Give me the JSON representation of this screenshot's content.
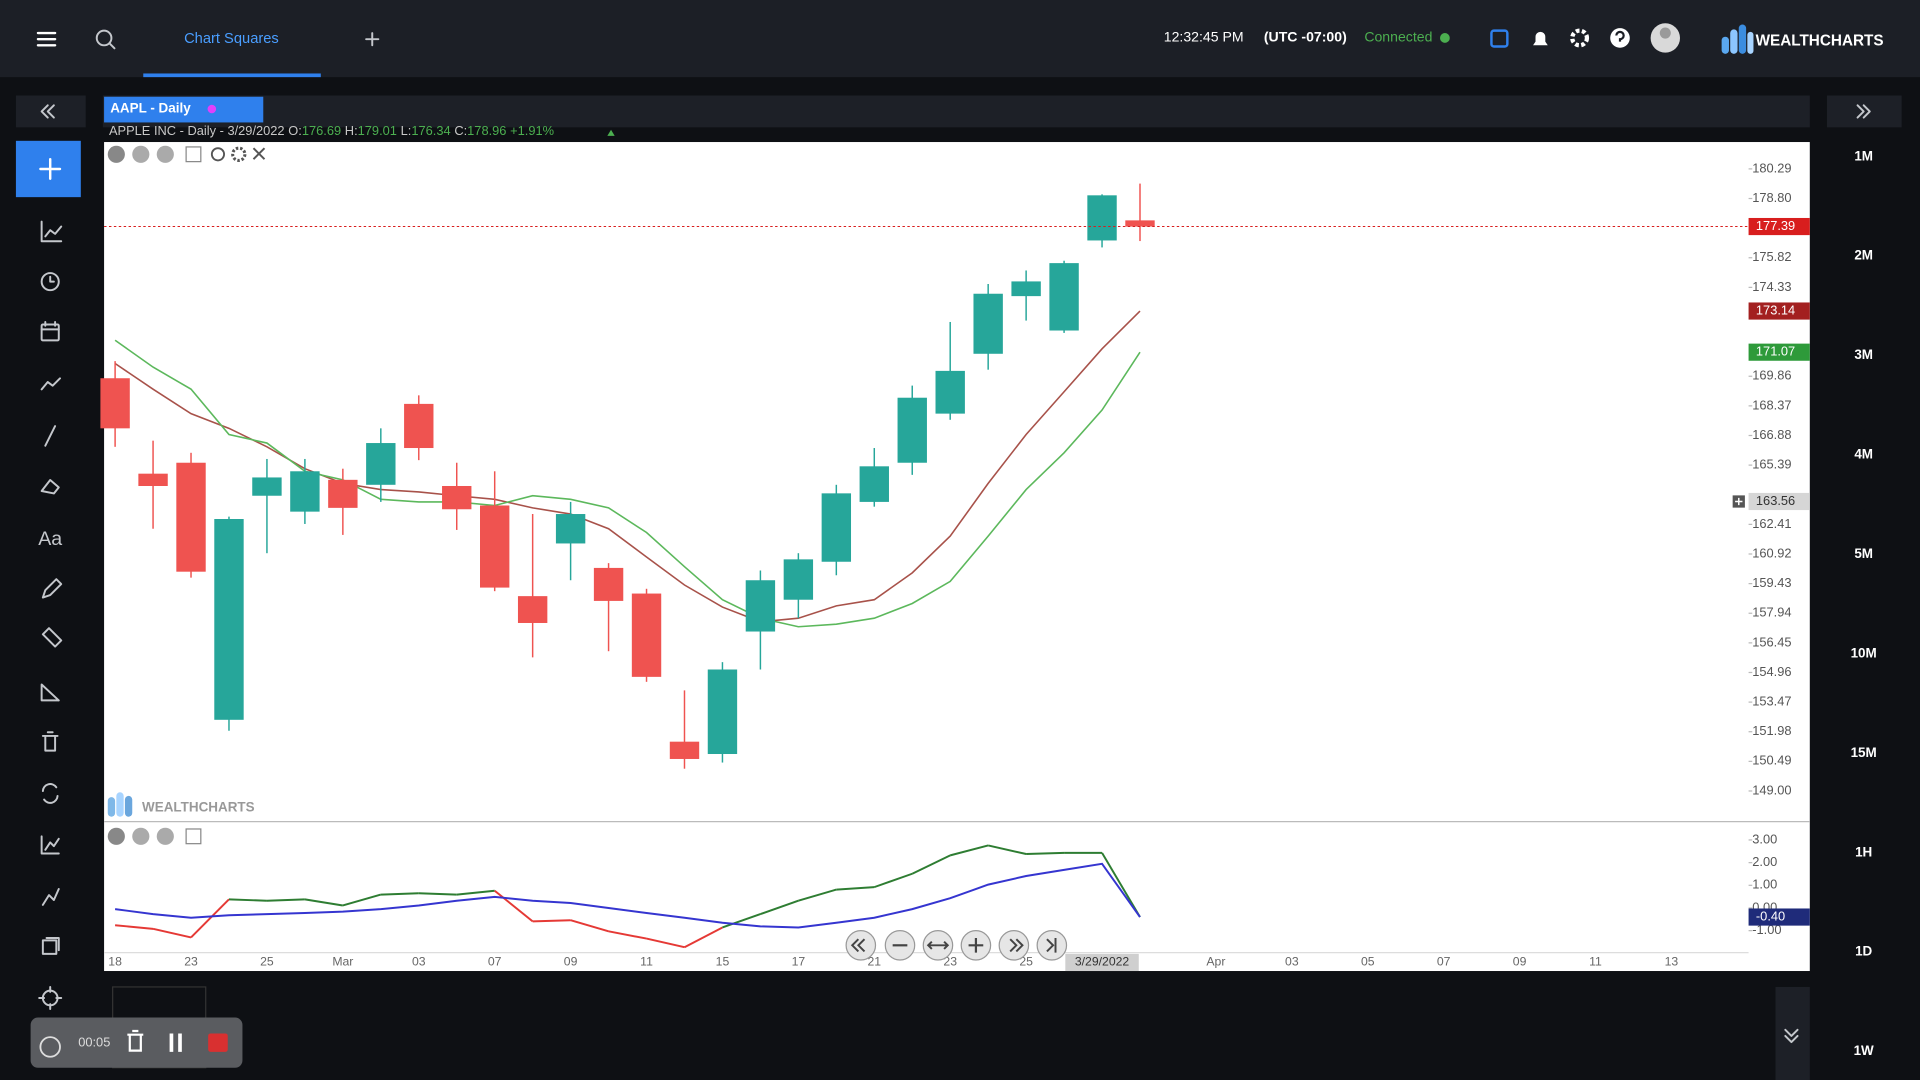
{
  "header": {
    "tab": "Chart Squares",
    "time": "12:32:45 PM",
    "timezone": "(UTC -07:00)",
    "status": "Connected",
    "brand": "WEALTHCHARTS"
  },
  "chart_tab": "AAPL - Daily",
  "legend": {
    "prefix": "APPLE INC - Daily - 3/29/2022",
    "items": [
      {
        "label": "O:",
        "value": 176.69
      },
      {
        "label": "H:",
        "value": 179.01
      },
      {
        "label": "L:",
        "value": 176.34
      },
      {
        "label": "C:",
        "value": 178.96
      }
    ],
    "change": "+1.91%"
  },
  "toolbar": {
    "text_tool": "Aa"
  },
  "timeframes": [
    "1M",
    "2M",
    "3M",
    "4M",
    "5M",
    "10M",
    "15M",
    "1H",
    "1D",
    "1W"
  ],
  "recorder": {
    "time": "00:05"
  },
  "chart_data": [
    {
      "type": "candlestick",
      "watermark": "WEALTHCHARTS",
      "categories": [
        "18",
        null,
        "23",
        null,
        "25",
        null,
        "Mar",
        null,
        "03",
        null,
        "07",
        null,
        "09",
        null,
        "11",
        null,
        "15",
        null,
        "17",
        null,
        "21",
        null,
        "23",
        null,
        "25",
        null,
        "3/29/2022",
        null,
        null,
        "Apr",
        null,
        "03",
        null,
        "05",
        null,
        "07",
        null,
        "09",
        null,
        "11",
        null,
        "13"
      ],
      "open": [
        169.76,
        164.96,
        165.51,
        152.58,
        163.85,
        163.05,
        164.65,
        164.4,
        168.47,
        164.34,
        163.36,
        158.8,
        161.45,
        160.22,
        158.93,
        151.48,
        150.86,
        157.02,
        158.62,
        160.53,
        163.54,
        165.51,
        167.98,
        170.99,
        173.89,
        172.16,
        176.69,
        177.7,
        null,
        null,
        null,
        null,
        null,
        null,
        null,
        null,
        null,
        null,
        null,
        null,
        null,
        null
      ],
      "high": [
        170.62,
        166.62,
        166.01,
        162.8,
        165.7,
        165.7,
        165.21,
        167.24,
        168.9,
        165.51,
        165.08,
        162.93,
        163.54,
        160.46,
        159.17,
        154.06,
        155.48,
        160.09,
        160.96,
        164.4,
        166.25,
        169.39,
        172.59,
        174.5,
        175.18,
        175.67,
        179.01,
        179.55,
        null,
        null,
        null,
        null,
        null,
        null,
        null,
        null,
        null,
        null,
        null,
        null,
        null,
        null
      ],
      "low": [
        166.31,
        162.19,
        159.73,
        152.03,
        160.96,
        162.43,
        161.88,
        163.54,
        165.64,
        162.13,
        159.05,
        155.72,
        159.6,
        156.03,
        154.49,
        150.12,
        150.43,
        155.11,
        157.69,
        159.85,
        163.3,
        164.9,
        167.67,
        170.19,
        172.66,
        172.04,
        176.34,
        176.66,
        null,
        null,
        null,
        null,
        null,
        null,
        null,
        null,
        null,
        null,
        null,
        null,
        null,
        null
      ],
      "close": [
        167.24,
        164.34,
        160.03,
        162.68,
        164.77,
        165.08,
        163.24,
        166.5,
        166.25,
        163.17,
        159.23,
        157.45,
        162.93,
        158.56,
        154.74,
        150.61,
        155.11,
        159.6,
        160.65,
        163.97,
        165.33,
        168.78,
        170.13,
        174.01,
        174.63,
        175.55,
        178.96,
        177.39,
        null,
        null,
        null,
        null,
        null,
        null,
        null,
        null,
        null,
        null,
        null,
        null,
        null,
        null
      ],
      "up_color": "#26a69a",
      "down_color": "#ef5350",
      "series": [
        {
          "color": "#a8524a",
          "values": [
            170.5,
            169.21,
            167.98,
            167.24,
            166.31,
            165.21,
            164.47,
            164.16,
            164.04,
            163.85,
            163.67,
            163.24,
            162.93,
            162.19,
            160.77,
            159.36,
            158.25,
            157.51,
            157.69,
            158.31,
            158.62,
            159.97,
            161.82,
            164.47,
            166.93,
            169.08,
            171.24,
            173.14,
            null,
            null,
            null,
            null,
            null,
            null,
            null,
            null,
            null,
            null,
            null,
            null,
            null,
            null
          ]
        },
        {
          "color": "#5cb85c",
          "values": [
            171.67,
            170.32,
            169.21,
            166.93,
            166.5,
            165.08,
            164.65,
            163.67,
            163.54,
            163.54,
            163.36,
            163.85,
            163.67,
            163.24,
            162.0,
            160.28,
            158.62,
            157.69,
            157.26,
            157.39,
            157.69,
            158.43,
            159.54,
            161.82,
            164.16,
            166.01,
            168.16,
            171.07,
            null,
            null,
            null,
            null,
            null,
            null,
            null,
            null,
            null,
            null,
            null,
            null,
            null,
            null
          ]
        }
      ],
      "ylim": [
        147.52,
        181.64
      ],
      "yticks": [
        180.29,
        {
          "value": 178.8,
          "label": "178.80"
        },
        175.82,
        174.33,
        169.86,
        168.37,
        166.88,
        165.39,
        162.41,
        160.92,
        159.43,
        157.94,
        156.45,
        154.96,
        153.47,
        151.98,
        150.49,
        {
          "value": 149,
          "label": "149.00"
        }
      ],
      "grid": false,
      "last_price": {
        "value": 177.39,
        "color": "#d81e1e"
      },
      "price_badges": [
        {
          "value": 173.14,
          "color": "#a32020"
        },
        {
          "value": 171.07,
          "color": "#2e9a3a"
        }
      ],
      "crosshair": {
        "x": "3/29/2022",
        "y": 163.56
      }
    },
    {
      "type": "line",
      "series": [
        {
          "color": "#2e7d32",
          "color_below": "#e53935",
          "values": [
            -0.76,
            -0.92,
            -1.3,
            0.38,
            0.32,
            0.38,
            0.11,
            0.59,
            0.65,
            0.59,
            0.76,
            -0.59,
            -0.54,
            -1.03,
            -1.35,
            -1.73,
            -0.86,
            -0.27,
            0.32,
            0.81,
            0.92,
            1.51,
            2.32,
            2.76,
            2.38,
            2.43,
            2.43,
            -0.4,
            null,
            null,
            null,
            null,
            null,
            null,
            null,
            null,
            null,
            null,
            null,
            null,
            null,
            null
          ]
        },
        {
          "color": "#3535d0",
          "values": [
            -0.05,
            -0.27,
            -0.43,
            -0.32,
            -0.27,
            -0.22,
            -0.16,
            -0.05,
            0.11,
            0.32,
            0.49,
            0.32,
            0.22,
            0.0,
            -0.22,
            -0.43,
            -0.65,
            -0.81,
            -0.86,
            -0.65,
            -0.43,
            -0.05,
            0.43,
            1.03,
            1.41,
            1.68,
            1.95,
            -0.4,
            null,
            null,
            null,
            null,
            null,
            null,
            null,
            null,
            null,
            null,
            null,
            null,
            null,
            null
          ]
        }
      ],
      "ylim": [
        -1.97,
        3.7
      ],
      "yticks": [
        {
          "value": 3,
          "label": "3.00"
        },
        {
          "value": 2,
          "label": "2.00"
        },
        {
          "value": 1,
          "label": "1.00"
        },
        {
          "value": 0,
          "label": "0.00"
        },
        {
          "value": -1,
          "label": "-1.00"
        }
      ],
      "badge": {
        "value": -0.4,
        "label": "-0.40",
        "color": "#1f2b7a"
      }
    }
  ]
}
